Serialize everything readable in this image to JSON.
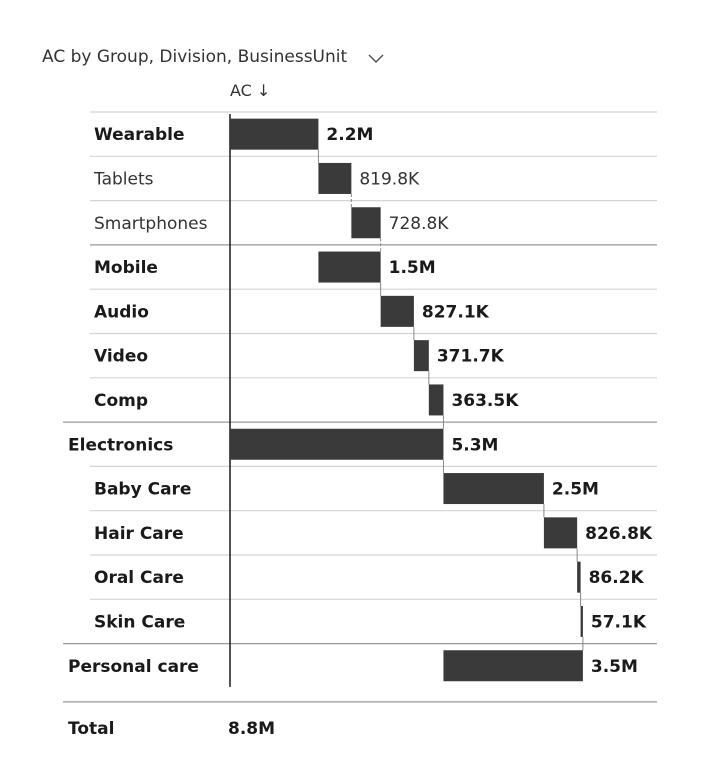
{
  "header": {
    "title": "AC by Group, Division, BusinessUnit",
    "dropdown_icon": "chevron-down-icon"
  },
  "column_label": "AC ↓",
  "chart_data": {
    "type": "bar",
    "title": "AC by Group, Division, BusinessUnit",
    "ylabel": "AC",
    "rows": [
      {
        "label": "Wearable",
        "value": 2200000,
        "display": "2.2M",
        "level": 1,
        "bold": true,
        "subtotal": false
      },
      {
        "label": "Tablets",
        "value": 819800,
        "display": "819.8K",
        "level": 2,
        "bold": false,
        "subtotal": false
      },
      {
        "label": "Smartphones",
        "value": 728800,
        "display": "728.8K",
        "level": 2,
        "bold": false,
        "subtotal": false
      },
      {
        "label": "Mobile",
        "value": 1500000,
        "display": "1.5M",
        "level": 1,
        "bold": true,
        "subtotal": true
      },
      {
        "label": "Audio",
        "value": 827100,
        "display": "827.1K",
        "level": 1,
        "bold": true,
        "subtotal": false
      },
      {
        "label": "Video",
        "value": 371700,
        "display": "371.7K",
        "level": 1,
        "bold": true,
        "subtotal": false
      },
      {
        "label": "Comp",
        "value": 363500,
        "display": "363.5K",
        "level": 1,
        "bold": true,
        "subtotal": false
      },
      {
        "label": "Electronics",
        "value": 5300000,
        "display": "5.3M",
        "level": 0,
        "bold": true,
        "subtotal": true
      },
      {
        "label": "Baby Care",
        "value": 2500000,
        "display": "2.5M",
        "level": 1,
        "bold": true,
        "subtotal": false
      },
      {
        "label": "Hair Care",
        "value": 826800,
        "display": "826.8K",
        "level": 1,
        "bold": true,
        "subtotal": false
      },
      {
        "label": "Oral Care",
        "value": 86200,
        "display": "86.2K",
        "level": 1,
        "bold": true,
        "subtotal": false
      },
      {
        "label": "Skin Care",
        "value": 57100,
        "display": "57.1K",
        "level": 1,
        "bold": true,
        "subtotal": false
      },
      {
        "label": "Personal care",
        "value": 3500000,
        "display": "3.5M",
        "level": 0,
        "bold": true,
        "subtotal": true
      }
    ],
    "total": {
      "label": "Total",
      "value": 8800000,
      "display": "8.8M"
    },
    "bar_color": "#3a3a3a",
    "grid": false
  }
}
